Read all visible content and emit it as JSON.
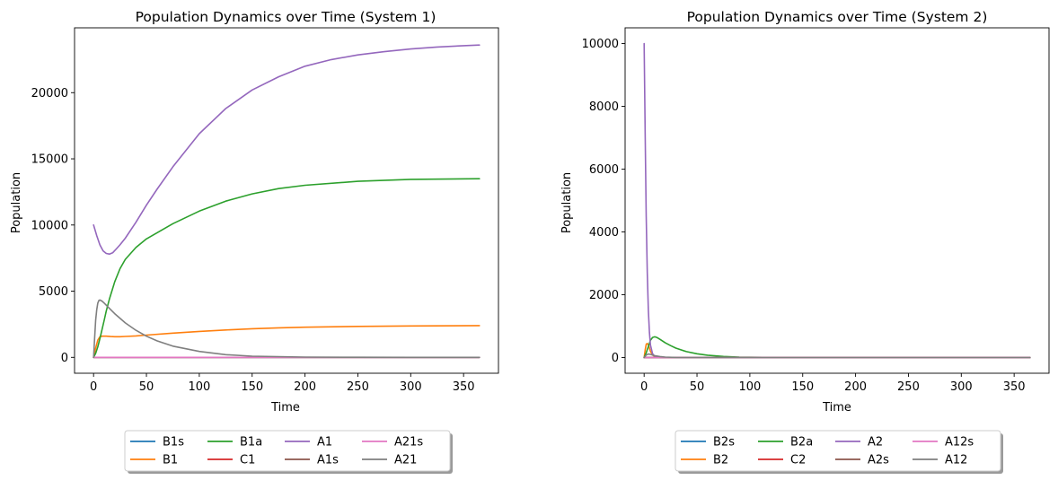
{
  "chart_data": [
    {
      "type": "line",
      "title": "Population Dynamics over Time (System 1)",
      "xlabel": "Time",
      "ylabel": "Population",
      "xlim": [
        -18,
        383
      ],
      "ylim": [
        -1200,
        24900
      ],
      "xticks": [
        0,
        50,
        100,
        150,
        200,
        250,
        300,
        350
      ],
      "yticks": [
        0,
        5000,
        10000,
        15000,
        20000
      ],
      "legend_position": "bottom-center",
      "legend_columns": 4,
      "grid": false,
      "series": [
        {
          "name": "B1s",
          "color": "#1f77b4",
          "x": [
            0,
            365
          ],
          "y": [
            0,
            0
          ]
        },
        {
          "name": "B1",
          "color": "#ff7f0e",
          "x": [
            0,
            2,
            4,
            6,
            8,
            12,
            16,
            20,
            25,
            30,
            40,
            50,
            75,
            100,
            125,
            150,
            175,
            200,
            250,
            300,
            365
          ],
          "y": [
            0,
            700,
            1300,
            1550,
            1600,
            1600,
            1570,
            1560,
            1560,
            1580,
            1620,
            1680,
            1830,
            1960,
            2070,
            2160,
            2230,
            2280,
            2340,
            2370,
            2400
          ]
        },
        {
          "name": "B1a",
          "color": "#2ca02c",
          "x": [
            0,
            2,
            4,
            6,
            8,
            10,
            12,
            15,
            20,
            25,
            30,
            40,
            50,
            75,
            100,
            125,
            150,
            175,
            200,
            250,
            300,
            365
          ],
          "y": [
            0,
            300,
            800,
            1400,
            2100,
            2800,
            3500,
            4400,
            5700,
            6700,
            7400,
            8300,
            8950,
            10100,
            11050,
            11800,
            12350,
            12750,
            13000,
            13300,
            13450,
            13500
          ]
        },
        {
          "name": "C1",
          "color": "#d62728",
          "x": [
            0,
            365
          ],
          "y": [
            0,
            0
          ]
        },
        {
          "name": "A1",
          "color": "#9467bd",
          "x": [
            0,
            3,
            6,
            9,
            12,
            15,
            18,
            21,
            25,
            30,
            40,
            50,
            60,
            75,
            100,
            125,
            150,
            175,
            200,
            225,
            250,
            275,
            300,
            325,
            350,
            365
          ],
          "y": [
            10000,
            9200,
            8500,
            8050,
            7850,
            7800,
            7900,
            8150,
            8500,
            9000,
            10200,
            11500,
            12700,
            14400,
            16900,
            18800,
            20200,
            21200,
            22000,
            22500,
            22850,
            23100,
            23300,
            23450,
            23550,
            23600
          ]
        },
        {
          "name": "A1s",
          "color": "#8c564b",
          "x": [
            0,
            365
          ],
          "y": [
            0,
            0
          ]
        },
        {
          "name": "A21s",
          "color": "#e377c2",
          "x": [
            0,
            365
          ],
          "y": [
            0,
            0
          ]
        },
        {
          "name": "A21",
          "color": "#7f7f7f",
          "x": [
            0,
            1,
            2,
            3,
            4,
            5,
            6,
            8,
            10,
            15,
            20,
            30,
            40,
            50,
            60,
            75,
            100,
            125,
            150,
            200,
            250,
            300,
            365
          ],
          "y": [
            0,
            1500,
            2800,
            3600,
            4100,
            4300,
            4330,
            4250,
            4100,
            3700,
            3300,
            2600,
            2050,
            1600,
            1250,
            850,
            450,
            200,
            90,
            20,
            5,
            0,
            0
          ]
        }
      ]
    },
    {
      "type": "line",
      "title": "Population Dynamics over Time (System 2)",
      "xlabel": "Time",
      "ylabel": "Population",
      "xlim": [
        -18,
        383
      ],
      "ylim": [
        -500,
        10500
      ],
      "xticks": [
        0,
        50,
        100,
        150,
        200,
        250,
        300,
        350
      ],
      "yticks": [
        0,
        2000,
        4000,
        6000,
        8000,
        10000
      ],
      "legend_position": "bottom-center",
      "legend_columns": 4,
      "grid": false,
      "series": [
        {
          "name": "B2s",
          "color": "#1f77b4",
          "x": [
            0,
            365
          ],
          "y": [
            0,
            0
          ]
        },
        {
          "name": "B2",
          "color": "#ff7f0e",
          "x": [
            0,
            1,
            2,
            3,
            4,
            5,
            6,
            8,
            10,
            15,
            20,
            365
          ],
          "y": [
            0,
            250,
            420,
            450,
            400,
            300,
            200,
            80,
            30,
            5,
            0,
            0
          ]
        },
        {
          "name": "B2a",
          "color": "#2ca02c",
          "x": [
            0,
            2,
            4,
            6,
            8,
            10,
            12,
            15,
            20,
            25,
            30,
            40,
            50,
            60,
            75,
            90,
            100,
            125,
            365
          ],
          "y": [
            0,
            150,
            350,
            550,
            640,
            660,
            640,
            580,
            470,
            380,
            300,
            190,
            120,
            75,
            35,
            15,
            8,
            2,
            0
          ]
        },
        {
          "name": "C2",
          "color": "#d62728",
          "x": [
            0,
            365
          ],
          "y": [
            0,
            0
          ]
        },
        {
          "name": "A2",
          "color": "#9467bd",
          "x": [
            0,
            1,
            2,
            3,
            4,
            5,
            6,
            8,
            10,
            15,
            20,
            365
          ],
          "y": [
            10000,
            7000,
            4500,
            2700,
            1500,
            800,
            400,
            120,
            40,
            5,
            0,
            0
          ]
        },
        {
          "name": "A2s",
          "color": "#8c564b",
          "x": [
            0,
            365
          ],
          "y": [
            0,
            0
          ]
        },
        {
          "name": "A12s",
          "color": "#e377c2",
          "x": [
            0,
            365
          ],
          "y": [
            0,
            0
          ]
        },
        {
          "name": "A12",
          "color": "#7f7f7f",
          "x": [
            0,
            2,
            4,
            6,
            8,
            10,
            15,
            20,
            30,
            40,
            365
          ],
          "y": [
            0,
            80,
            110,
            100,
            80,
            60,
            30,
            15,
            4,
            1,
            0
          ]
        }
      ]
    }
  ]
}
